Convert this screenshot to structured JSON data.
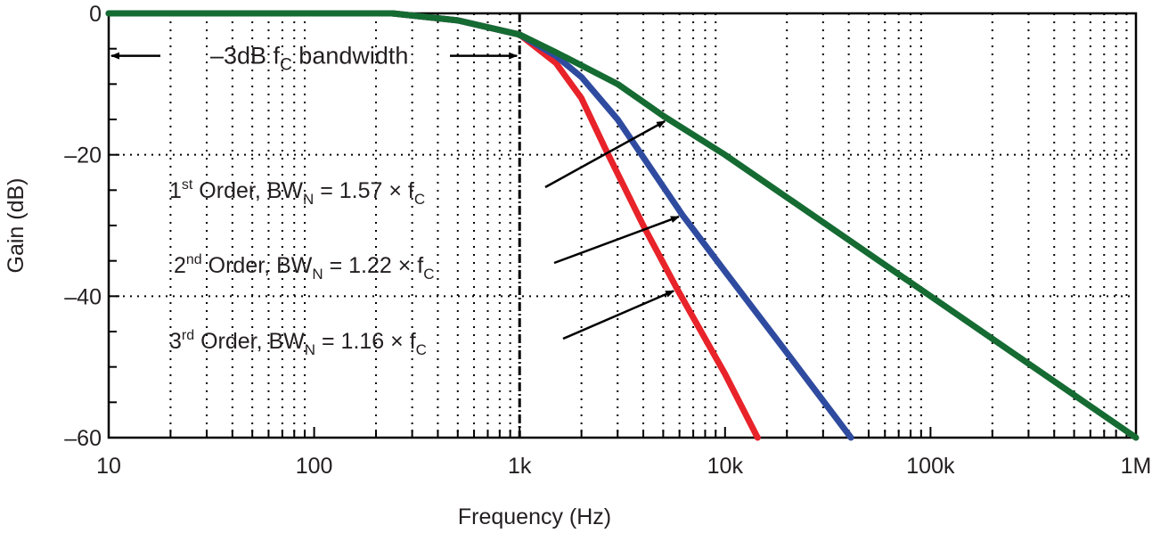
{
  "chart_data": {
    "type": "line",
    "xlabel": "Frequency (Hz)",
    "ylabel": "Gain (dB)",
    "xscale": "log",
    "xlim": [
      10,
      1000000
    ],
    "ylim": [
      -60,
      0
    ],
    "x_tick_values": [
      10,
      100,
      1000,
      10000,
      100000,
      1000000
    ],
    "x_tick_labels": [
      "10",
      "100",
      "1k",
      "10k",
      "100k",
      "1M"
    ],
    "y_tick_values": [
      0,
      -20,
      -40,
      -60
    ],
    "y_tick_labels": [
      "0",
      "–20",
      "–40",
      "–60"
    ],
    "grid": true,
    "cutoff_marker": 1000,
    "bandwidth_label": {
      "main": "–3dB f",
      "sub": "C",
      "tail": " bandwidth"
    },
    "series": [
      {
        "color": "#156b32",
        "points": [
          [
            10,
            0
          ],
          [
            240,
            0
          ],
          [
            500,
            -1
          ],
          [
            1000,
            -3
          ],
          [
            1500,
            -5.5
          ],
          [
            3000,
            -10
          ],
          [
            5000,
            -14.5
          ],
          [
            10000,
            -20
          ],
          [
            100000,
            -40
          ],
          [
            1000000,
            -60
          ]
        ]
      },
      {
        "color": "#2f4ba0",
        "points": [
          [
            10,
            0
          ],
          [
            240,
            0
          ],
          [
            500,
            -1
          ],
          [
            1000,
            -3
          ],
          [
            1500,
            -6
          ],
          [
            2000,
            -9
          ],
          [
            3000,
            -15
          ],
          [
            6200,
            -28.5
          ],
          [
            10000,
            -36.5
          ],
          [
            20000,
            -48
          ],
          [
            41000,
            -60
          ]
        ]
      },
      {
        "color": "#e8232a",
        "points": [
          [
            10,
            0
          ],
          [
            240,
            0
          ],
          [
            500,
            -1
          ],
          [
            1000,
            -3
          ],
          [
            1500,
            -7
          ],
          [
            2000,
            -12
          ],
          [
            2600,
            -19
          ],
          [
            4000,
            -30
          ],
          [
            5850,
            -39
          ],
          [
            10000,
            -51
          ],
          [
            14400,
            -60
          ]
        ]
      }
    ],
    "annotations": [
      {
        "ord": "1",
        "sup": "st",
        "text": " Order, BW",
        "sub": "N",
        "value": " = 1.57 × f",
        "sub2": "C",
        "target": [
          5300,
          -15
        ]
      },
      {
        "ord": "2",
        "sup": "nd",
        "text": " Order, BW",
        "sub": "N",
        "value": " = 1.22 × f",
        "sub2": "C",
        "target": [
          6200,
          -28.5
        ]
      },
      {
        "ord": "3",
        "sup": "rd",
        "text": " Order, BW",
        "sub": "N",
        "value": " = 1.16 × f",
        "sub2": "C",
        "target": [
          5850,
          -39
        ]
      }
    ]
  }
}
